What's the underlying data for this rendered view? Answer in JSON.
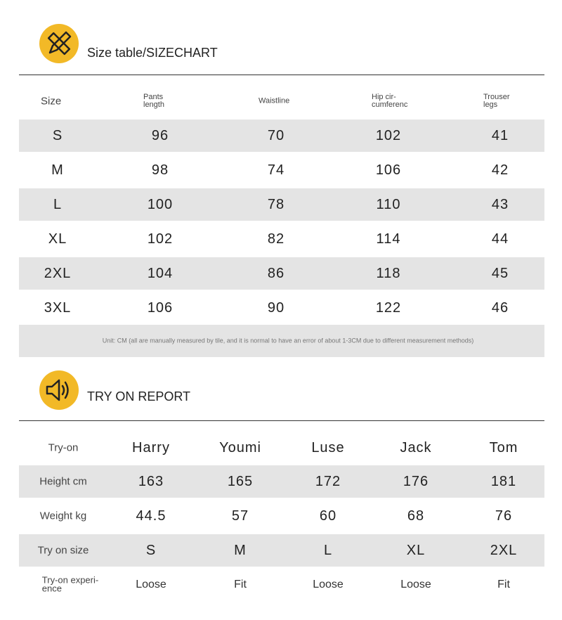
{
  "size_section": {
    "title": "Size table/SIZECHART",
    "header": [
      "Size",
      "Pants\nlength",
      "Waistline",
      "Hip cir-\ncumferenc",
      "Trouser\nlegs"
    ],
    "rows": [
      [
        "S",
        "96",
        "70",
        "102",
        "41"
      ],
      [
        "M",
        "98",
        "74",
        "106",
        "42"
      ],
      [
        "L",
        "100",
        "78",
        "110",
        "43"
      ],
      [
        "XL",
        "102",
        "82",
        "114",
        "44"
      ],
      [
        "2XL",
        "104",
        "86",
        "118",
        "45"
      ],
      [
        "3XL",
        "106",
        "90",
        "122",
        "46"
      ]
    ],
    "note": "Unit: CM (all are manually measured by tile, and it is normal to have an error of about 1-3CM due to different measurement methods)"
  },
  "tryon_section": {
    "title": "TRY ON REPORT",
    "header": [
      "Try-on",
      "Harry",
      "Youmi",
      "Luse",
      "Jack",
      "Tom"
    ],
    "rows": [
      [
        "Height cm",
        "163",
        "165",
        "172",
        "176",
        "181"
      ],
      [
        "Weight kg",
        "44.5",
        "57",
        "60",
        "68",
        "76"
      ],
      [
        "Try on size",
        "S",
        "M",
        "L",
        "XL",
        "2XL"
      ],
      [
        "Try-on experi-\nence",
        "Loose",
        "Fit",
        "Loose",
        "Loose",
        "Fit"
      ]
    ]
  }
}
